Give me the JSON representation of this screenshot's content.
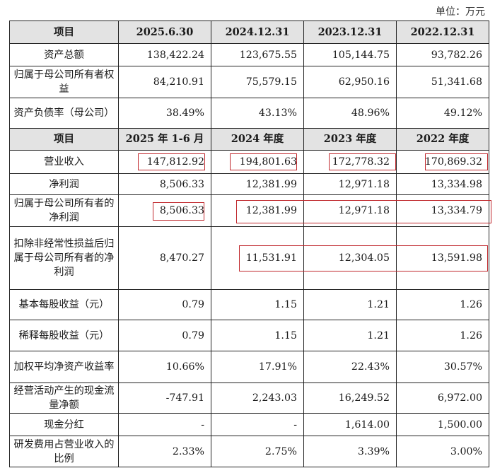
{
  "unit": "单位：万元",
  "header1": [
    "项目",
    "2025.6.30",
    "2024.12.31",
    "2023.12.31",
    "2022.12.31"
  ],
  "balance_rows": [
    {
      "label": "资产总额",
      "values": [
        "138,422.24",
        "123,675.55",
        "105,144.75",
        "93,782.26"
      ]
    },
    {
      "label": "归属于母公司所有者权益",
      "values": [
        "84,210.91",
        "75,579.15",
        "62,950.16",
        "51,341.68"
      ]
    },
    {
      "label": "资产负债率（母公司）",
      "values": [
        "38.49%",
        "43.13%",
        "48.96%",
        "49.12%"
      ]
    }
  ],
  "header2": [
    "项目",
    "2025 年 1-6 月",
    "2024 年度",
    "2023 年度",
    "2022 年度"
  ],
  "income_rows": [
    {
      "label": "营业收入",
      "values": [
        "147,812.92",
        "194,801.63",
        "172,778.32",
        "170,869.32"
      ]
    },
    {
      "label": "净利润",
      "values": [
        "8,506.33",
        "12,381.99",
        "12,971.18",
        "13,334.98"
      ]
    },
    {
      "label": "归属于母公司所有者的净利润",
      "values": [
        "8,506.33",
        "12,381.99",
        "12,971.18",
        "13,334.79"
      ]
    },
    {
      "label": "扣除非经常性损益后归属于母公司所有者的净利润",
      "values": [
        "8,470.27",
        "11,531.91",
        "12,304.05",
        "13,591.98"
      ]
    },
    {
      "label": "基本每股收益（元）",
      "values": [
        "0.79",
        "1.15",
        "1.21",
        "1.26"
      ]
    },
    {
      "label": "稀释每股收益（元）",
      "values": [
        "0.79",
        "1.15",
        "1.21",
        "1.26"
      ]
    },
    {
      "label": "加权平均净资产收益率",
      "values": [
        "10.66%",
        "17.91%",
        "22.43%",
        "30.57%"
      ]
    },
    {
      "label": "经营活动产生的现金流量净额",
      "values": [
        "-747.91",
        "2,243.03",
        "16,249.52",
        "6,972.00"
      ]
    },
    {
      "label": "现金分红",
      "values": [
        "-",
        "-",
        "1,614.00",
        "1,500.00"
      ]
    },
    {
      "label": "研发费用占营业收入的比例",
      "values": [
        "2.33%",
        "2.75%",
        "3.39%",
        "3.00%"
      ]
    }
  ],
  "highlight_color": "#c0282d"
}
